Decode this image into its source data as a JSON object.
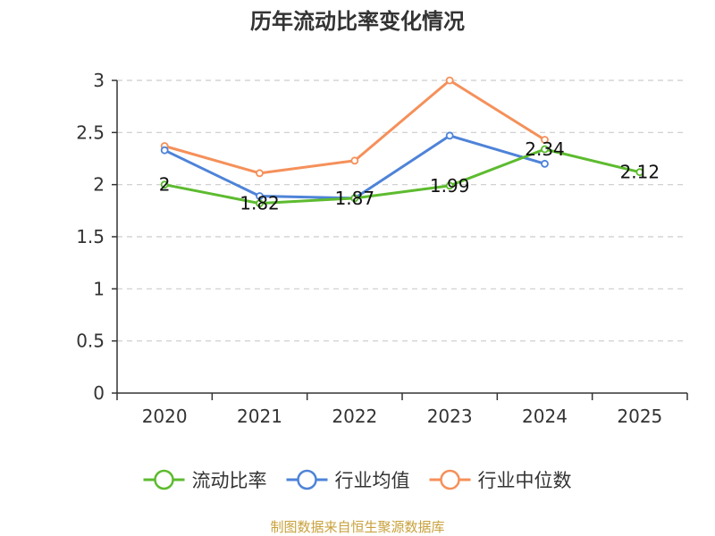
{
  "chart_data": {
    "type": "line",
    "title": "历年流动比率变化情况",
    "categories": [
      "2020",
      "2021",
      "2022",
      "2023",
      "2024",
      "2025"
    ],
    "ylim": [
      0,
      3
    ],
    "yticks": [
      "0",
      "0.5",
      "1",
      "1.5",
      "2",
      "2.5",
      "3"
    ],
    "grid": true,
    "legend_position": "bottom",
    "series": [
      {
        "name": "流动比率",
        "color": "#5dbb2f",
        "values": [
          2,
          1.82,
          1.87,
          1.99,
          2.34,
          2.12
        ],
        "labels": [
          "2",
          "1.82",
          "1.87",
          "1.99",
          "2.34",
          "2.12"
        ]
      },
      {
        "name": "行业均值",
        "color": "#4e83d8",
        "values": [
          2.33,
          1.89,
          1.87,
          2.47,
          2.2,
          null
        ]
      },
      {
        "name": "行业中位数",
        "color": "#f5905a",
        "values": [
          2.37,
          2.11,
          2.23,
          3.0,
          2.43,
          null
        ]
      }
    ]
  },
  "source_text": "制图数据来自恒生聚源数据库",
  "source_color": "#c8a13c"
}
